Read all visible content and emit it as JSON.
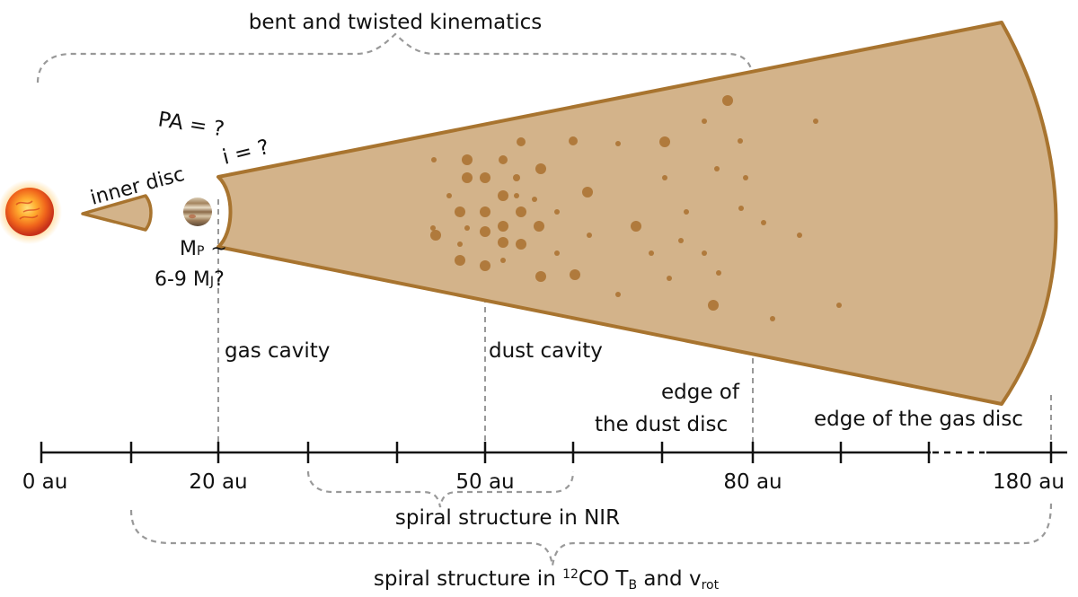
{
  "labels": {
    "top_brace": "bent and twisted kinematics",
    "pa": "PA = ?",
    "incl": "i = ?",
    "inner_disc": "inner disc",
    "mass_line1": "M",
    "mass_sub_p": "P",
    "mass_tilde": " ~",
    "mass_line2": "6-9 M",
    "mass_sub_j": "J",
    "mass_q": "?",
    "gas_cavity": "gas cavity",
    "dust_cavity": "dust cavity",
    "edge_dust_1": "edge of",
    "edge_dust_2": "the dust disc",
    "edge_gas": "edge of the gas disc",
    "nir_spiral": "spiral structure in NIR",
    "co_prefix": "spiral structure in ",
    "co_sup": "12",
    "co_mid": "CO T",
    "co_sub_b": "B",
    "co_and": " and v",
    "co_sub_rot": "rot"
  },
  "axis": {
    "ticks": [
      {
        "label": "0 au"
      },
      {
        "label": "20 au"
      },
      {
        "label": "50 au"
      },
      {
        "label": "80 au"
      },
      {
        "label": "180 au"
      }
    ]
  },
  "colors": {
    "disc_fill": "#d3b38a",
    "disc_edge": "#a8742f",
    "grain": "#b07a3c",
    "guide": "#999999"
  },
  "icons": {
    "star": "star-icon",
    "planet": "planet-icon"
  }
}
